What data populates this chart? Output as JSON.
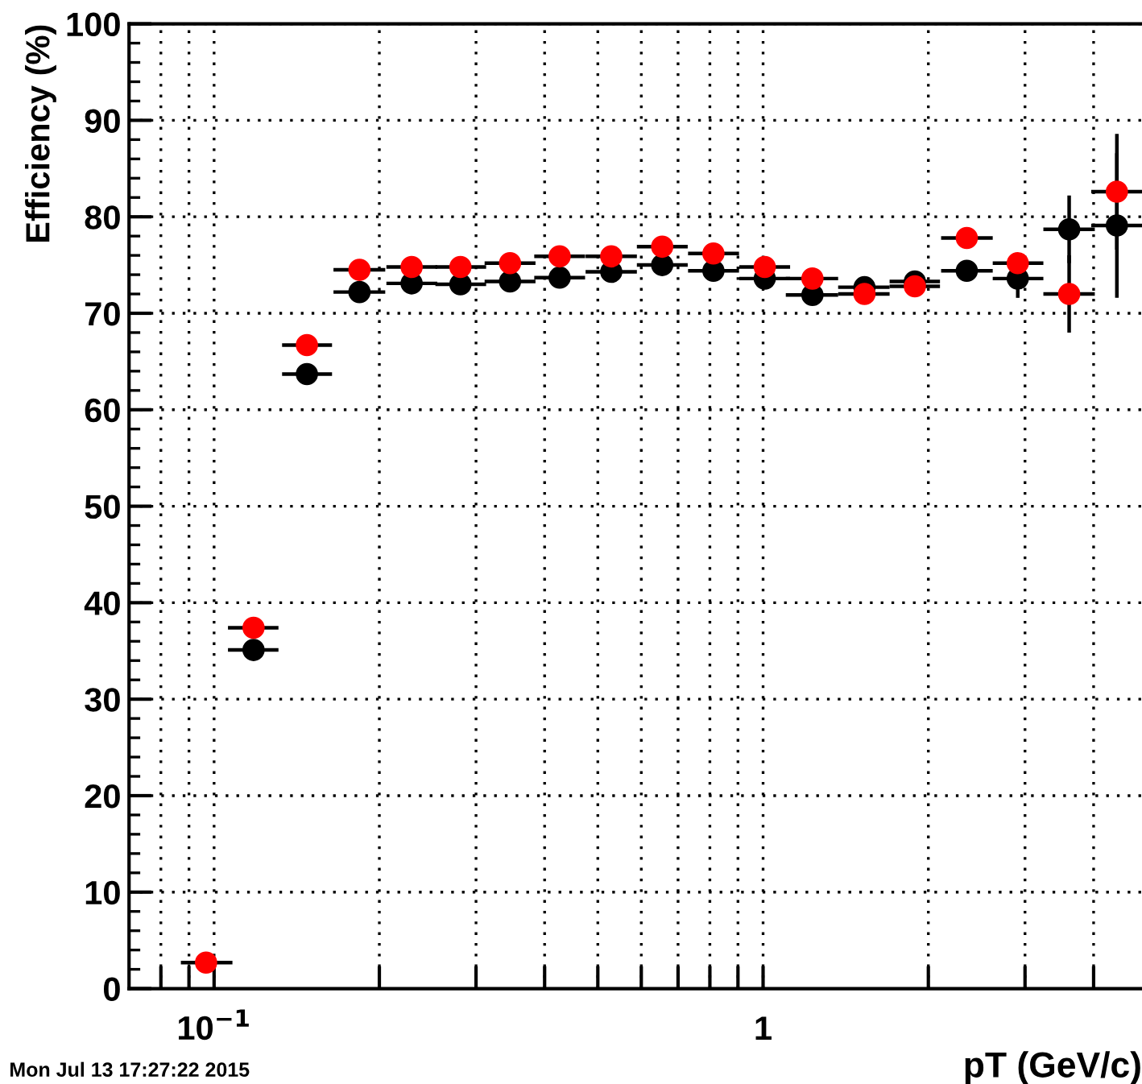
{
  "chart_data": {
    "type": "scatter",
    "xlabel": "pT (GeV/c)",
    "ylabel": "Efficiency (%)",
    "annotations": [
      "Mon Jul 13 17:27:22 2015"
    ],
    "x": [
      0.0967,
      0.118,
      0.1476,
      0.184,
      0.229,
      0.281,
      0.346,
      0.426,
      0.529,
      0.655,
      0.812,
      1.007,
      1.23,
      1.53,
      1.89,
      2.35,
      2.91,
      3.61,
      4.41
    ],
    "series": [
      {
        "color": "#000000",
        "xerrors": [
          null,
          [
            0.106,
            0.131
          ],
          [
            0.133,
            0.164
          ],
          [
            0.165,
            0.205
          ],
          [
            0.206,
            0.255
          ],
          [
            0.253,
            0.313
          ],
          [
            0.311,
            0.385
          ],
          [
            0.383,
            0.474
          ],
          [
            0.475,
            0.589
          ],
          [
            0.589,
            0.729
          ],
          [
            0.73,
            0.904
          ],
          [
            0.905,
            1.12
          ],
          [
            1.1,
            1.37
          ],
          [
            1.37,
            1.7
          ],
          [
            1.7,
            2.1
          ],
          [
            2.11,
            2.62
          ],
          [
            2.62,
            3.24
          ],
          [
            3.24,
            4.02
          ],
          [
            3.96,
            4.9
          ]
        ],
        "values": [
          null,
          35.1,
          63.7,
          72.2,
          73.1,
          73.0,
          73.3,
          73.7,
          74.3,
          75.0,
          74.4,
          73.6,
          71.9,
          72.7,
          73.3,
          74.4,
          73.6,
          78.7,
          79.1
        ],
        "errors": [
          null,
          null,
          null,
          null,
          null,
          null,
          null,
          null,
          null,
          null,
          null,
          null,
          null,
          null,
          null,
          null,
          2,
          3.5,
          7.5
        ]
      },
      {
        "color": "#ff0000",
        "xerrors": [
          [
            0.087,
            0.108
          ],
          [
            0.106,
            0.131
          ],
          [
            0.133,
            0.164
          ],
          [
            0.165,
            0.205
          ],
          [
            0.206,
            0.255
          ],
          [
            0.253,
            0.313
          ],
          [
            0.311,
            0.385
          ],
          [
            0.383,
            0.474
          ],
          [
            0.475,
            0.589
          ],
          [
            0.589,
            0.729
          ],
          [
            0.73,
            0.904
          ],
          [
            0.905,
            1.12
          ],
          [
            1.1,
            1.37
          ],
          [
            1.37,
            1.7
          ],
          [
            1.7,
            2.1
          ],
          [
            2.11,
            2.62
          ],
          [
            2.62,
            3.24
          ],
          [
            3.24,
            4.02
          ],
          [
            3.96,
            4.9
          ]
        ],
        "values": [
          2.7,
          37.4,
          66.7,
          74.5,
          74.8,
          74.8,
          75.2,
          75.9,
          75.9,
          76.9,
          76.2,
          74.8,
          73.6,
          72.0,
          72.8,
          77.8,
          75.2,
          72.0,
          82.6
        ],
        "errors": [
          null,
          null,
          null,
          null,
          null,
          null,
          null,
          null,
          null,
          null,
          null,
          null,
          null,
          null,
          null,
          null,
          null,
          4,
          6
        ]
      }
    ],
    "marker": "circle",
    "log": "x",
    "xlim": [
      0.07,
      4.9
    ],
    "xticks": [
      {
        "value": 0.08,
        "label": null
      },
      {
        "value": 0.09,
        "label": null
      },
      {
        "value": 0.1,
        "label": "10$^{−1}$"
      },
      {
        "value": 0.2,
        "label": null
      },
      {
        "value": 0.3,
        "label": null
      },
      {
        "value": 0.4,
        "label": null
      },
      {
        "value": 0.5,
        "label": null
      },
      {
        "value": 0.6,
        "label": null
      },
      {
        "value": 0.7,
        "label": null
      },
      {
        "value": 0.8,
        "label": null
      },
      {
        "value": 0.9,
        "label": null
      },
      1,
      {
        "value": 2,
        "label": null
      },
      {
        "value": 3,
        "label": null
      },
      {
        "value": 4,
        "label": null
      }
    ],
    "ylim": [
      0,
      100
    ],
    "yticks": [
      0,
      10,
      20,
      30,
      40,
      50,
      60,
      70,
      80,
      90,
      100
    ],
    "grid": true
  }
}
